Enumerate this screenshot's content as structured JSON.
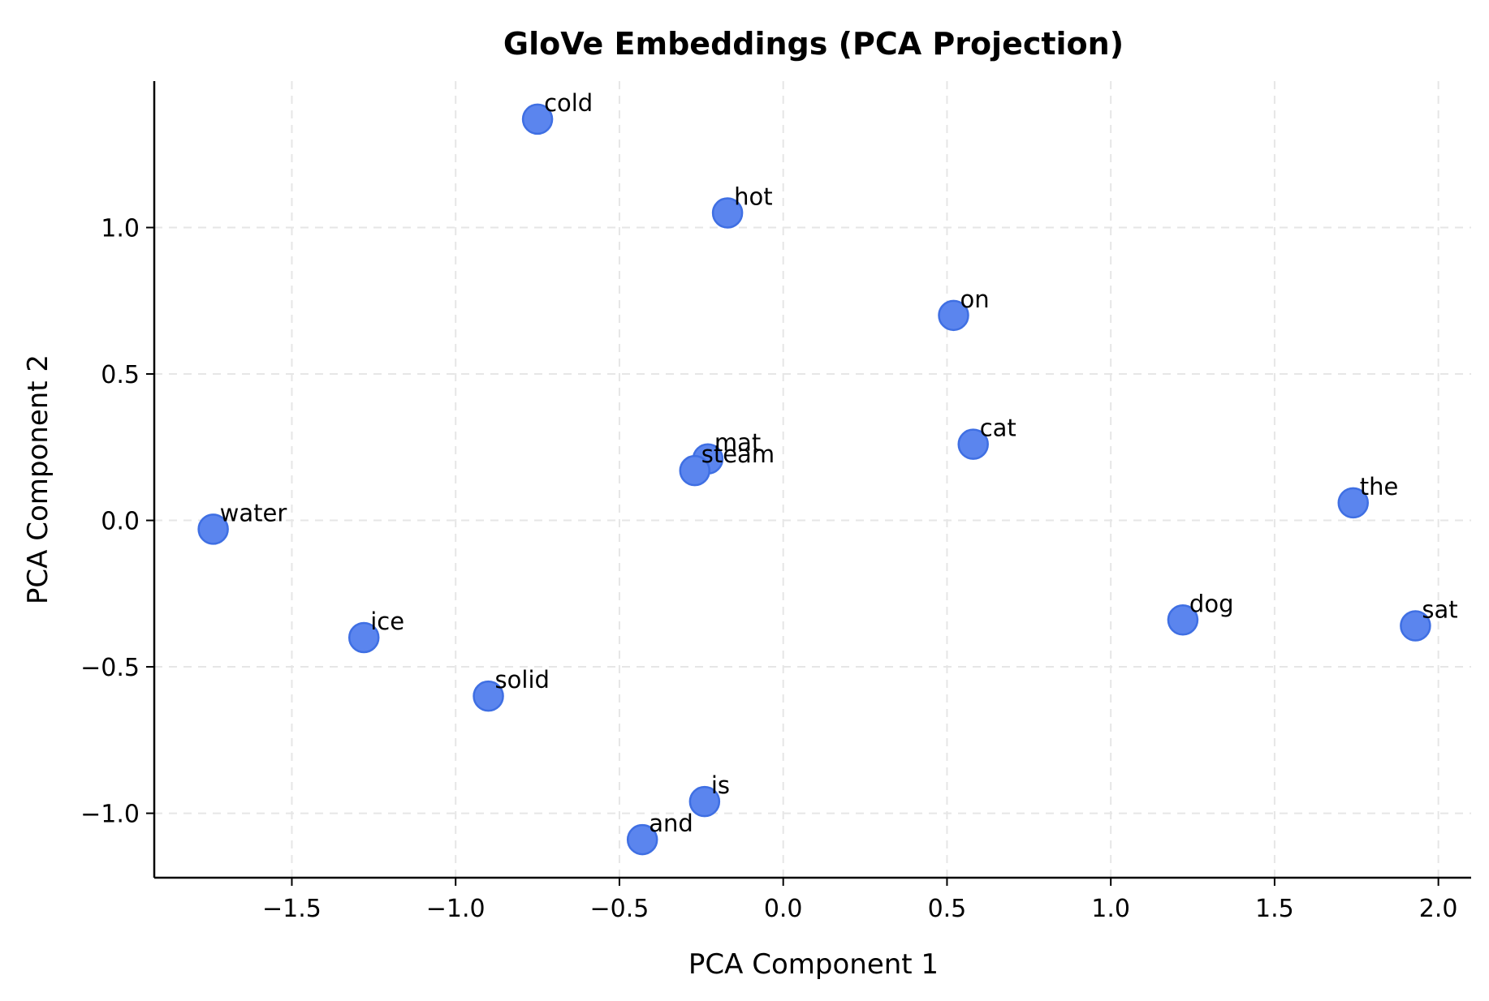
{
  "chart_data": {
    "type": "scatter",
    "title": "GloVe Embeddings (PCA Projection)",
    "xlabel": "PCA Component 1",
    "ylabel": "PCA Component 2",
    "xlim": [
      -1.92,
      2.1
    ],
    "ylim": [
      -1.22,
      1.5
    ],
    "grid": true,
    "x_ticks": [
      -1.5,
      -1.0,
      -0.5,
      0.0,
      0.5,
      1.0,
      1.5,
      2.0
    ],
    "x_tick_labels": [
      "−1.5",
      "−1.0",
      "−0.5",
      "0.0",
      "0.5",
      "1.0",
      "1.5",
      "2.0"
    ],
    "y_ticks": [
      -1.0,
      -0.5,
      0.0,
      0.5,
      1.0
    ],
    "y_tick_labels": [
      "−1.0",
      "−0.5",
      "0.0",
      "0.5",
      "1.0"
    ],
    "point_color": "#5b85ee",
    "point_edge_color": "#3f6fe3",
    "points": [
      {
        "label": "cold",
        "x": -0.75,
        "y": 1.37
      },
      {
        "label": "hot",
        "x": -0.17,
        "y": 1.05
      },
      {
        "label": "on",
        "x": 0.52,
        "y": 0.7
      },
      {
        "label": "cat",
        "x": 0.58,
        "y": 0.26
      },
      {
        "label": "mat",
        "x": -0.23,
        "y": 0.21
      },
      {
        "label": "steam",
        "x": -0.27,
        "y": 0.17
      },
      {
        "label": "the",
        "x": 1.74,
        "y": 0.06
      },
      {
        "label": "water",
        "x": -1.74,
        "y": -0.03
      },
      {
        "label": "dog",
        "x": 1.22,
        "y": -0.34
      },
      {
        "label": "sat",
        "x": 1.93,
        "y": -0.36
      },
      {
        "label": "ice",
        "x": -1.28,
        "y": -0.4
      },
      {
        "label": "solid",
        "x": -0.9,
        "y": -0.6
      },
      {
        "label": "is",
        "x": -0.24,
        "y": -0.96
      },
      {
        "label": "and",
        "x": -0.43,
        "y": -1.09
      }
    ]
  }
}
